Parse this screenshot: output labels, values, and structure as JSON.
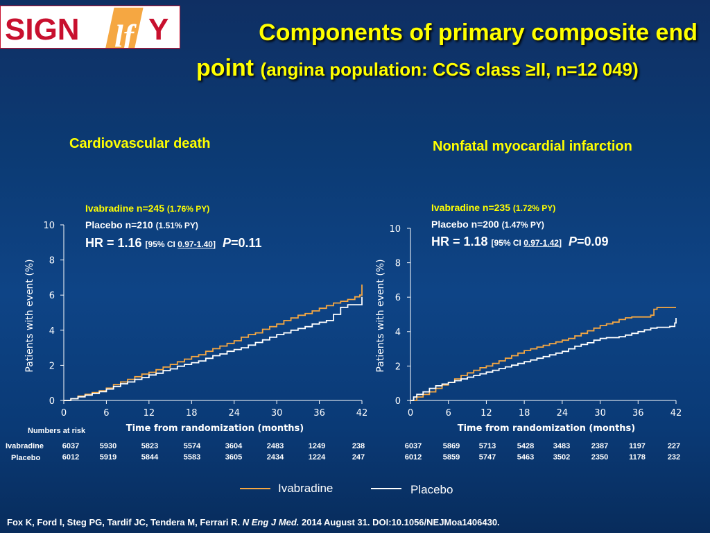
{
  "logo": {
    "text_left": "SIGN",
    "text_mid": "lf",
    "text_right": "Y"
  },
  "title": {
    "line1": "Components of primary composite end",
    "line2_main": "point",
    "line2_sub": "(angina population: CCS class ≥II, n=12 049)"
  },
  "colors": {
    "ivabradine": "#f5a742",
    "placebo": "#ffffff",
    "title": "#ffff00"
  },
  "chart_data": [
    {
      "type": "line",
      "title": "Cardiovascular death",
      "xlabel": "Time from randomization (months)",
      "ylabel": "Patients with event (%)",
      "xlim": [
        0,
        42
      ],
      "ylim": [
        0,
        10
      ],
      "xticks": [
        "0",
        "6",
        "12",
        "18",
        "24",
        "30",
        "36",
        "42"
      ],
      "yticks": [
        "0",
        "2",
        "4",
        "6",
        "8",
        "10"
      ],
      "grid": false,
      "annotations": {
        "iva_main": "Ivabradine n=245 ",
        "iva_pct": "(1.76% PY)",
        "plc_main": "Placebo n=210 ",
        "plc_pct": "(1.51% PY)",
        "hr_main": "HR = 1.16 ",
        "ci_prefix": "[95% CI ",
        "ci_value": "0.97-1.40",
        "ci_suffix": "]",
        "p_italic": "P",
        "p_value": "=0.11"
      },
      "series": [
        {
          "name": "Ivabradine",
          "color": "#f5a742",
          "x": [
            0,
            1,
            2,
            3,
            4,
            5,
            6,
            7,
            8,
            9,
            10,
            11,
            12,
            13,
            14,
            15,
            16,
            17,
            18,
            19,
            20,
            21,
            22,
            23,
            24,
            25,
            26,
            27,
            28,
            29,
            30,
            31,
            32,
            33,
            34,
            35,
            36,
            37,
            38,
            39,
            40,
            41,
            41.7,
            42
          ],
          "y": [
            0,
            0.1,
            0.25,
            0.35,
            0.45,
            0.55,
            0.7,
            0.9,
            1.05,
            1.2,
            1.35,
            1.5,
            1.6,
            1.75,
            1.9,
            2.05,
            2.2,
            2.35,
            2.5,
            2.6,
            2.8,
            2.95,
            3.1,
            3.25,
            3.4,
            3.6,
            3.75,
            3.85,
            4.05,
            4.2,
            4.35,
            4.55,
            4.7,
            4.85,
            4.95,
            5.1,
            5.25,
            5.4,
            5.55,
            5.65,
            5.75,
            5.9,
            6.0,
            6.6
          ]
        },
        {
          "name": "Placebo",
          "color": "#ffffff",
          "x": [
            0,
            1,
            2,
            3,
            4,
            5,
            6,
            7,
            8,
            9,
            10,
            11,
            12,
            13,
            14,
            15,
            16,
            17,
            18,
            19,
            20,
            21,
            22,
            23,
            24,
            25,
            26,
            27,
            28,
            29,
            30,
            31,
            32,
            33,
            34,
            35,
            36,
            37,
            38,
            39,
            40,
            41,
            41.7,
            42
          ],
          "y": [
            0,
            0.1,
            0.2,
            0.3,
            0.4,
            0.5,
            0.65,
            0.8,
            0.95,
            1.05,
            1.2,
            1.3,
            1.45,
            1.55,
            1.7,
            1.8,
            1.95,
            2.05,
            2.15,
            2.25,
            2.4,
            2.55,
            2.65,
            2.8,
            2.9,
            3.0,
            3.15,
            3.3,
            3.45,
            3.6,
            3.75,
            3.85,
            4.0,
            4.1,
            4.2,
            4.35,
            4.45,
            4.55,
            4.9,
            5.3,
            5.45,
            5.45,
            5.45,
            5.9
          ]
        }
      ],
      "risk_table": {
        "header": "Numbers at risk",
        "Ivabradine": [
          "6037",
          "5930",
          "5823",
          "5574",
          "3604",
          "2483",
          "1249",
          "238"
        ],
        "Placebo": [
          "6012",
          "5919",
          "5844",
          "5583",
          "3605",
          "2434",
          "1224",
          "247"
        ]
      }
    },
    {
      "type": "line",
      "title": "Nonfatal myocardial infarction",
      "xlabel": "Time from randomization (months)",
      "ylabel": "Patients with event (%)",
      "xlim": [
        0,
        42
      ],
      "ylim": [
        0,
        10
      ],
      "xticks": [
        "0",
        "6",
        "12",
        "18",
        "24",
        "30",
        "36",
        "42"
      ],
      "yticks": [
        "0",
        "2",
        "4",
        "6",
        "8",
        "10"
      ],
      "grid": false,
      "annotations": {
        "iva_main": "Ivabradine n=235 ",
        "iva_pct": "(1.72% PY)",
        "plc_main": "Placebo n=200 ",
        "plc_pct": "(1.47% PY)",
        "hr_main": "HR = 1.18 ",
        "ci_prefix": "[95% CI ",
        "ci_value": "0.97-1.42",
        "ci_suffix": "]",
        "p_italic": "P",
        "p_value": "=0.09"
      },
      "series": [
        {
          "name": "Ivabradine",
          "color": "#f5a742",
          "x": [
            0,
            1,
            2,
            3,
            4,
            5,
            6,
            7,
            8,
            9,
            10,
            11,
            12,
            13,
            14,
            15,
            16,
            17,
            18,
            19,
            20,
            21,
            22,
            23,
            24,
            25,
            26,
            27,
            28,
            29,
            30,
            31,
            32,
            33,
            34,
            35,
            36,
            37,
            38,
            38.5,
            39,
            40,
            41,
            42
          ],
          "y": [
            0,
            0.2,
            0.35,
            0.5,
            0.7,
            0.9,
            1.05,
            1.25,
            1.45,
            1.6,
            1.75,
            1.9,
            2.0,
            2.15,
            2.3,
            2.45,
            2.6,
            2.75,
            2.9,
            3.0,
            3.1,
            3.2,
            3.3,
            3.4,
            3.5,
            3.6,
            3.75,
            3.9,
            4.05,
            4.2,
            4.35,
            4.45,
            4.55,
            4.7,
            4.8,
            4.85,
            4.85,
            4.85,
            4.95,
            5.3,
            5.4,
            5.4,
            5.4,
            5.4
          ]
        },
        {
          "name": "Placebo",
          "color": "#ffffff",
          "x": [
            0,
            0.5,
            1,
            2,
            3,
            4,
            5,
            6,
            7,
            8,
            9,
            10,
            11,
            12,
            13,
            14,
            15,
            16,
            17,
            18,
            19,
            20,
            21,
            22,
            23,
            24,
            25,
            26,
            27,
            28,
            29,
            30,
            31,
            32,
            33,
            34,
            35,
            36,
            37,
            38,
            39,
            40,
            41,
            41.8,
            42
          ],
          "y": [
            0,
            0.2,
            0.35,
            0.5,
            0.7,
            0.85,
            0.95,
            1.05,
            1.15,
            1.25,
            1.35,
            1.45,
            1.55,
            1.65,
            1.75,
            1.85,
            1.95,
            2.05,
            2.15,
            2.25,
            2.35,
            2.45,
            2.55,
            2.65,
            2.75,
            2.85,
            3.0,
            3.15,
            3.25,
            3.35,
            3.5,
            3.6,
            3.65,
            3.65,
            3.7,
            3.8,
            3.9,
            4.0,
            4.1,
            4.2,
            4.25,
            4.25,
            4.3,
            4.5,
            4.8
          ]
        }
      ],
      "risk_table": {
        "Ivabradine": [
          "6037",
          "5869",
          "5713",
          "5428",
          "3483",
          "2387",
          "1197",
          "227"
        ],
        "Placebo": [
          "6012",
          "5859",
          "5747",
          "5463",
          "3502",
          "2350",
          "1178",
          "232"
        ]
      }
    }
  ],
  "risk_row_labels": {
    "ivabradine": "Ivabradine",
    "placebo": "Placebo"
  },
  "legend": {
    "ivabradine": "Ivabradine",
    "placebo": "Placebo"
  },
  "footer": {
    "authors": "Fox K, Ford I, Steg PG, Tardif JC, Tendera M, Ferrari R. ",
    "journal": "N Eng J Med.",
    "rest": " 2014 August 31. DOI:10.1056/NEJMoa1406430."
  }
}
